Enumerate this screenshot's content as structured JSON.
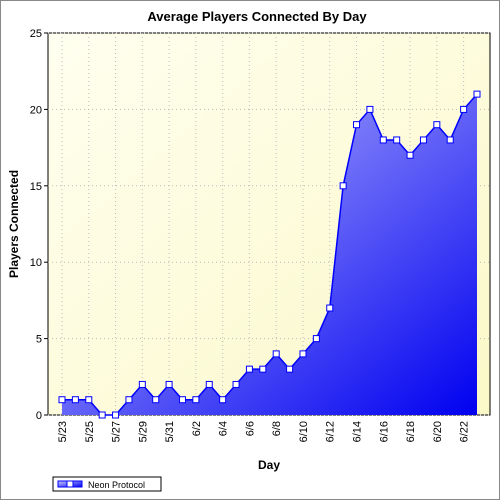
{
  "chart_data": {
    "type": "area",
    "title": "Average Players Connected By Day",
    "x_label": "Day",
    "y_label": "Players Connected",
    "categories": [
      "5/23",
      null,
      "5/25",
      null,
      "5/27",
      null,
      "5/29",
      null,
      "5/31",
      null,
      "6/2",
      null,
      "6/4",
      null,
      "6/6",
      null,
      "6/8",
      null,
      "6/10",
      null,
      "6/12",
      null,
      "6/14",
      null,
      "6/16",
      null,
      "6/18",
      null,
      "6/20",
      null,
      "6/22",
      null
    ],
    "series": [
      {
        "name": "Neon Protocol",
        "color": "#0000ff",
        "values": [
          1,
          1,
          1,
          0,
          0,
          1,
          2,
          1,
          2,
          1,
          1,
          2,
          1,
          2,
          3,
          3,
          4,
          3,
          4,
          5,
          7,
          15,
          19,
          20,
          18,
          18,
          17,
          18,
          19,
          18,
          20,
          21
        ]
      }
    ],
    "ylim": [
      0,
      25
    ],
    "yticks": [
      0,
      5,
      10,
      15,
      20,
      25
    ],
    "grid": true
  }
}
